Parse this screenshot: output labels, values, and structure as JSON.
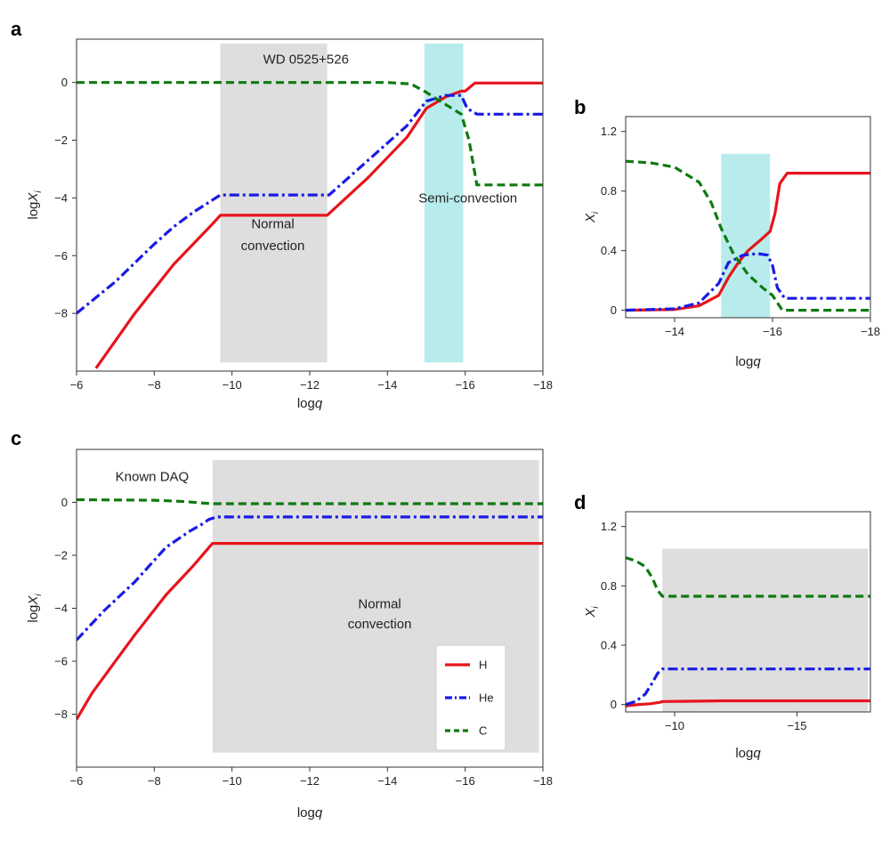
{
  "chart_data": [
    {
      "panel": "a",
      "type": "line",
      "xlabel": "logq",
      "ylabel": "logX",
      "ylabel_sub": "i",
      "xlim": [
        -6,
        -18
      ],
      "ylim": [
        -10,
        1.5
      ],
      "xticks": [
        -6,
        -8,
        -10,
        -12,
        -14,
        -16,
        -18
      ],
      "yticks": [
        0,
        -2,
        -4,
        -6,
        -8
      ],
      "annotations": [
        {
          "text": "WD 0525+526",
          "x": -10.8,
          "y": 0.65
        },
        {
          "text": "Normal",
          "x": -11.05,
          "y": -5.05
        },
        {
          "text": "convection",
          "x": -11.05,
          "y": -5.8
        },
        {
          "text": "Semi-convection",
          "x": -14.8,
          "y": -4.15
        }
      ],
      "shaded_regions": [
        {
          "x": [
            -9.7,
            -12.45
          ],
          "y": [
            -9.7,
            1.35
          ],
          "fill": "gray"
        },
        {
          "x": [
            -14.95,
            -15.95
          ],
          "y": [
            -9.7,
            1.35
          ],
          "fill": "cyan"
        }
      ],
      "series": [
        {
          "name": "H",
          "style": "solid",
          "color": "#e8141c",
          "x": [
            -6.5,
            -7.5,
            -8.5,
            -9.5,
            -9.7,
            -12.45,
            -13.5,
            -14.5,
            -15.0,
            -15.5,
            -15.9,
            -16.0,
            -16.25,
            -18
          ],
          "y": [
            -9.9,
            -8.0,
            -6.3,
            -4.9,
            -4.6,
            -4.6,
            -3.3,
            -1.9,
            -0.9,
            -0.5,
            -0.3,
            -0.3,
            -0.02,
            -0.02
          ]
        },
        {
          "name": "He",
          "style": "dashdot",
          "color": "#1a1ae6",
          "x": [
            -6,
            -7,
            -8,
            -8.5,
            -9,
            -9.7,
            -12.5,
            -13.5,
            -14.5,
            -15.0,
            -15.5,
            -15.9,
            -16.05,
            -16.3,
            -18
          ],
          "y": [
            -8.0,
            -6.9,
            -5.6,
            -5.0,
            -4.5,
            -3.9,
            -3.9,
            -2.7,
            -1.5,
            -0.65,
            -0.45,
            -0.45,
            -0.9,
            -1.1,
            -1.1
          ]
        },
        {
          "name": "C",
          "style": "dashed",
          "color": "#0f7a0f",
          "x": [
            -6,
            -12,
            -14,
            -14.6,
            -14.95,
            -15.3,
            -15.6,
            -15.9,
            -16.1,
            -16.3,
            -18
          ],
          "y": [
            0.0,
            0.0,
            0.0,
            -0.05,
            -0.3,
            -0.6,
            -0.85,
            -1.1,
            -2.0,
            -3.55,
            -3.55
          ]
        }
      ]
    },
    {
      "panel": "b",
      "type": "line",
      "xlabel": "logq",
      "ylabel": "X",
      "ylabel_sub": "i",
      "xlim": [
        -13,
        -18
      ],
      "ylim": [
        -0.05,
        1.3
      ],
      "xticks": [
        -14,
        -16,
        -18
      ],
      "yticks": [
        0,
        0.4,
        0.8,
        1.2
      ],
      "ytick_labels": [
        "0",
        "0.4",
        "0.8",
        "1.2"
      ],
      "shaded_regions": [
        {
          "x": [
            -14.95,
            -15.95
          ],
          "y": [
            -0.05,
            1.05
          ],
          "fill": "cyan"
        }
      ],
      "series": [
        {
          "name": "H",
          "style": "solid",
          "color": "#e8141c",
          "x": [
            -13,
            -14,
            -14.5,
            -14.9,
            -15.1,
            -15.3,
            -15.5,
            -15.75,
            -15.95,
            -16.05,
            -16.15,
            -16.3,
            -18
          ],
          "y": [
            0.0,
            0.005,
            0.03,
            0.1,
            0.22,
            0.32,
            0.4,
            0.47,
            0.53,
            0.65,
            0.85,
            0.92,
            0.92
          ]
        },
        {
          "name": "He",
          "style": "dashdot",
          "color": "#1a1ae6",
          "x": [
            -13,
            -14,
            -14.5,
            -14.9,
            -15.1,
            -15.4,
            -15.7,
            -15.9,
            -16.0,
            -16.1,
            -16.25,
            -18
          ],
          "y": [
            0.0,
            0.01,
            0.05,
            0.18,
            0.32,
            0.37,
            0.38,
            0.37,
            0.3,
            0.15,
            0.08,
            0.08
          ]
        },
        {
          "name": "C",
          "style": "dashed",
          "color": "#0f7a0f",
          "x": [
            -13,
            -13.5,
            -14.0,
            -14.5,
            -14.75,
            -14.95,
            -15.2,
            -15.5,
            -15.8,
            -16.0,
            -16.2,
            -18
          ],
          "y": [
            1.0,
            0.99,
            0.96,
            0.86,
            0.72,
            0.55,
            0.38,
            0.24,
            0.15,
            0.1,
            0.0,
            0.0
          ]
        }
      ]
    },
    {
      "panel": "c",
      "type": "line",
      "xlabel": "logq",
      "ylabel": "logX",
      "ylabel_sub": "i",
      "xlim": [
        -6,
        -18
      ],
      "ylim": [
        -10,
        2
      ],
      "xticks": [
        -6,
        -8,
        -10,
        -12,
        -14,
        -16,
        -18
      ],
      "yticks": [
        0,
        -2,
        -4,
        -6,
        -8
      ],
      "annotations": [
        {
          "text": "Known DAQ",
          "x": -7.0,
          "y": 0.8
        },
        {
          "text": "Normal",
          "x": -13.8,
          "y": -4.0
        },
        {
          "text": "convection",
          "x": -13.8,
          "y": -4.75
        }
      ],
      "shaded_regions": [
        {
          "x": [
            -9.5,
            -17.9
          ],
          "y": [
            -9.45,
            1.6
          ],
          "fill": "gray"
        }
      ],
      "legend": {
        "position": "lower-right",
        "entries": [
          "H",
          "He",
          "C"
        ]
      },
      "series": [
        {
          "name": "H",
          "style": "solid",
          "color": "#e8141c",
          "x": [
            -6,
            -6.4,
            -6.8,
            -7.5,
            -8.3,
            -9.0,
            -9.5,
            -18
          ],
          "y": [
            -8.2,
            -7.2,
            -6.4,
            -5.0,
            -3.5,
            -2.4,
            -1.55,
            -1.55
          ]
        },
        {
          "name": "He",
          "style": "dashdot",
          "color": "#1a1ae6",
          "x": [
            -6,
            -6.7,
            -7.5,
            -8.3,
            -8.9,
            -9.2,
            -9.4,
            -9.6,
            -18
          ],
          "y": [
            -5.2,
            -4.1,
            -3.0,
            -1.7,
            -1.1,
            -0.85,
            -0.65,
            -0.55,
            -0.55
          ]
        },
        {
          "name": "C",
          "style": "dashed",
          "color": "#0f7a0f",
          "x": [
            -6,
            -8.0,
            -8.8,
            -9.2,
            -9.5,
            -18
          ],
          "y": [
            0.1,
            0.08,
            0.03,
            -0.02,
            -0.05,
            -0.05
          ]
        }
      ]
    },
    {
      "panel": "d",
      "type": "line",
      "xlabel": "logq",
      "ylabel": "X",
      "ylabel_sub": "i",
      "xlim": [
        -8,
        -18
      ],
      "ylim": [
        -0.05,
        1.3
      ],
      "xticks": [
        -10,
        -15
      ],
      "yticks": [
        0,
        0.4,
        0.8,
        1.2
      ],
      "ytick_labels": [
        "0",
        "0.4",
        "0.8",
        "1.2"
      ],
      "shaded_regions": [
        {
          "x": [
            -9.5,
            -17.9
          ],
          "y": [
            -0.05,
            1.05
          ],
          "fill": "gray"
        }
      ],
      "series": [
        {
          "name": "H",
          "style": "solid",
          "color": "#e8141c",
          "x": [
            -8,
            -8.5,
            -9.0,
            -9.4,
            -9.5,
            -12,
            -18
          ],
          "y": [
            -0.01,
            0.0,
            0.005,
            0.015,
            0.02,
            0.025,
            0.025
          ]
        },
        {
          "name": "He",
          "style": "dashdot",
          "color": "#1a1ae6",
          "x": [
            -8,
            -8.4,
            -8.8,
            -9.1,
            -9.3,
            -9.5,
            -18
          ],
          "y": [
            0.0,
            0.02,
            0.07,
            0.15,
            0.21,
            0.24,
            0.24
          ]
        },
        {
          "name": "C",
          "style": "dashed",
          "color": "#0f7a0f",
          "x": [
            -8,
            -8.4,
            -8.8,
            -9.1,
            -9.3,
            -9.5,
            -18
          ],
          "y": [
            0.99,
            0.97,
            0.93,
            0.85,
            0.77,
            0.73,
            0.73
          ]
        }
      ]
    }
  ],
  "labels": {
    "panel_a": "a",
    "panel_b": "b",
    "panel_c": "c",
    "panel_d": "d"
  }
}
